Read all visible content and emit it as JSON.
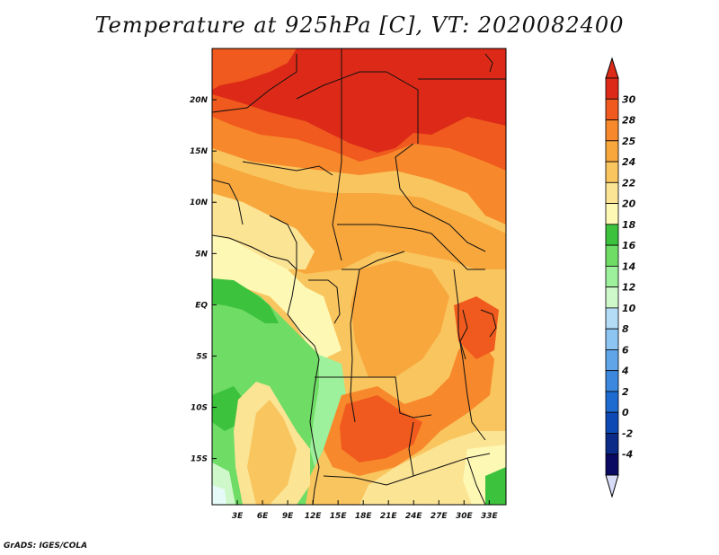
{
  "title": "Temperature at 925hPa [C], VT: 2020082400",
  "credit": "GrADS: IGES/COLA",
  "map": {
    "longitude_labels": [
      "3E",
      "6E",
      "9E",
      "12E",
      "15E",
      "18E",
      "21E",
      "24E",
      "27E",
      "30E",
      "33E"
    ],
    "latitude_labels": [
      "20N",
      "15N",
      "10N",
      "5N",
      "EQ",
      "5S",
      "10S",
      "15S"
    ],
    "extent": {
      "lon_min": 0,
      "lon_max": 35,
      "lat_min": -19.5,
      "lat_max": 25
    }
  },
  "colorbar": {
    "labels": [
      "30",
      "28",
      "25",
      "24",
      "22",
      "20",
      "18",
      "16",
      "14",
      "12",
      "10",
      "8",
      "6",
      "4",
      "2",
      "0",
      "-2",
      "-4"
    ],
    "colors": [
      "#dd2a18",
      "#f05a1e",
      "#f7892c",
      "#f8a73d",
      "#f9c55e",
      "#fbe494",
      "#fef8b5",
      "#3cc23c",
      "#6fdc66",
      "#9ef19c",
      "#cef8ca",
      "#b4dcf6",
      "#8cc4f2",
      "#5fa5e8",
      "#3b88de",
      "#1d6ad0",
      "#0c49b5",
      "#0c2a88",
      "#0a0a62"
    ],
    "over_color": "#dd2a18",
    "under_color": "#d9dcf7"
  }
}
